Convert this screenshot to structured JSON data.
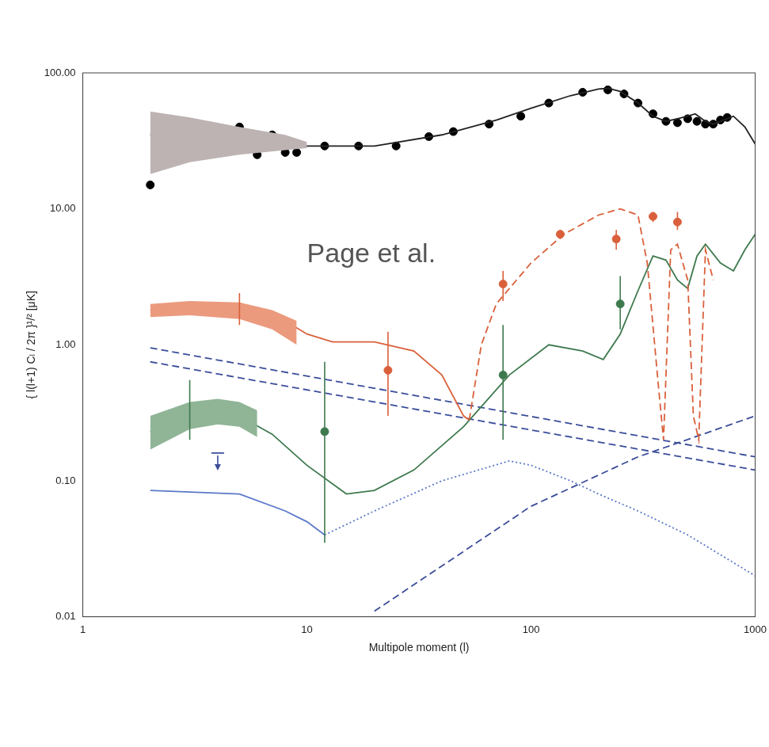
{
  "chart_data": {
    "type": "line",
    "log": true,
    "grid": false,
    "x_label": "Multipole moment (l)",
    "y_label": "{ l(l+1) Cₗ / 2π }¹/² [μK]",
    "xlim": [
      1,
      1000
    ],
    "xticks": [
      1,
      10,
      100,
      1000
    ],
    "ylim": [
      0.01,
      100
    ],
    "yticks": [
      {
        "value": 0.01,
        "label": "0.01"
      },
      {
        "value": 0.1,
        "label": "0.10"
      },
      {
        "value": 1,
        "label": "1.00"
      },
      {
        "value": 10,
        "label": "10.00"
      },
      {
        "value": 100,
        "label": "100.00"
      }
    ],
    "annotations": [
      {
        "text": "Page et al.",
        "x": 10,
        "y": 4.6
      }
    ],
    "series": [
      {
        "type": "band",
        "color": "#bdb3b3",
        "x": [
          2,
          3,
          5,
          8,
          10
        ],
        "lower": [
          18,
          22,
          25,
          27,
          28
        ],
        "upper": [
          52,
          47,
          40,
          35,
          31
        ]
      },
      {
        "type": "line",
        "color": "#222222",
        "line_style": "solid",
        "x": [
          2,
          3,
          5,
          10,
          20,
          40,
          70,
          100,
          150,
          200,
          220,
          250,
          300,
          350,
          400,
          450,
          500,
          540,
          600,
          650,
          700,
          800,
          900,
          1000
        ],
        "values": [
          35,
          34,
          32,
          29,
          29,
          35,
          45,
          55,
          68,
          76,
          77,
          73,
          60,
          48,
          44,
          46,
          48,
          50,
          44,
          42,
          44,
          48,
          40,
          30
        ]
      },
      {
        "type": "scatter",
        "color": "#000000",
        "marker": "circle",
        "x": [
          2,
          3,
          4,
          5,
          6,
          7,
          8,
          9,
          12,
          17,
          25,
          35,
          45,
          65,
          90,
          120,
          170,
          220,
          260,
          300,
          350,
          400,
          450,
          500,
          550,
          600,
          650,
          700,
          750
        ],
        "values": [
          15,
          33,
          27,
          40,
          25,
          35,
          26,
          26,
          29,
          29,
          29,
          34,
          37,
          42,
          48,
          60,
          72,
          75,
          70,
          60,
          50,
          44,
          43,
          46,
          44,
          42,
          42,
          45,
          47
        ]
      },
      {
        "type": "band",
        "color": "#eb9a7e",
        "x": [
          2,
          3,
          5,
          7,
          9
        ],
        "lower": [
          1.6,
          1.65,
          1.55,
          1.3,
          1.0
        ],
        "upper": [
          2.0,
          2.1,
          2.05,
          1.8,
          1.5
        ]
      },
      {
        "type": "line",
        "color": "#d9603b",
        "line_style": "solid",
        "x": [
          2,
          3,
          5,
          8,
          10,
          13,
          20,
          30,
          40,
          50,
          53
        ],
        "values": [
          1.8,
          1.85,
          1.8,
          1.5,
          1.2,
          1.05,
          1.05,
          0.9,
          0.6,
          0.3,
          0.28
        ]
      },
      {
        "type": "line",
        "color": "#d9603b",
        "line_style": "dashed",
        "x": [
          53,
          60,
          70,
          100,
          140,
          200,
          250,
          300,
          330,
          370,
          390,
          420,
          450,
          500,
          530,
          560,
          600,
          650
        ],
        "values": [
          0.28,
          1.0,
          2.0,
          4,
          6.5,
          9,
          10,
          9,
          4,
          0.5,
          0.2,
          5,
          5.5,
          3,
          0.3,
          0.2,
          5,
          3
        ]
      },
      {
        "type": "scatter",
        "color": "#d9603b",
        "marker": "circle",
        "x": [
          5,
          23,
          75,
          135,
          240,
          350,
          450
        ],
        "values": [
          1.9,
          0.65,
          2.8,
          6.5,
          6,
          8.8,
          8
        ],
        "error_low": [
          1.4,
          0.3,
          2.1,
          6.0,
          5,
          8,
          7
        ],
        "error_high": [
          2.4,
          1.25,
          3.5,
          7.0,
          7,
          9.5,
          9.5
        ]
      },
      {
        "type": "band",
        "color": "#8fb596",
        "x": [
          2,
          3,
          4,
          5,
          6
        ],
        "lower": [
          0.17,
          0.24,
          0.26,
          0.25,
          0.21
        ],
        "upper": [
          0.3,
          0.38,
          0.4,
          0.38,
          0.33
        ]
      },
      {
        "type": "line",
        "color": "#3f7a4f",
        "line_style": "solid",
        "x": [
          2,
          3,
          5,
          7,
          10,
          15,
          20,
          30,
          50,
          80,
          120,
          170,
          210,
          250,
          300,
          350,
          400,
          450,
          500,
          550,
          600,
          700,
          800,
          900,
          1000
        ],
        "values": [
          0.23,
          0.3,
          0.3,
          0.22,
          0.13,
          0.08,
          0.085,
          0.12,
          0.25,
          0.6,
          1.0,
          0.9,
          0.78,
          1.2,
          2.5,
          4.5,
          4.2,
          3.0,
          2.6,
          4.5,
          5.5,
          4,
          3.5,
          5,
          6.5
        ]
      },
      {
        "type": "scatter",
        "color": "#3f7a4f",
        "marker": "circle",
        "x": [
          3,
          12,
          75,
          250
        ],
        "values": [
          0.32,
          0.23,
          0.6,
          2.0
        ],
        "error_low": [
          0.2,
          0.035,
          0.2,
          1.3
        ],
        "error_high": [
          0.55,
          0.75,
          1.4,
          3.2
        ]
      },
      {
        "type": "line",
        "color": "#5b78c9",
        "line_style": "solid",
        "x": [
          2,
          5,
          8,
          10,
          12
        ],
        "values": [
          0.085,
          0.08,
          0.06,
          0.05,
          0.04
        ]
      },
      {
        "type": "line",
        "color": "#5b78c9",
        "line_style": "dotted",
        "x": [
          12,
          20,
          40,
          80,
          100,
          150,
          200,
          300,
          500,
          1000
        ],
        "values": [
          0.04,
          0.06,
          0.1,
          0.14,
          0.13,
          0.1,
          0.08,
          0.06,
          0.04,
          0.02
        ]
      },
      {
        "type": "scatter",
        "color": "#3b4d9a",
        "marker": "upper_limit",
        "x": [
          4
        ],
        "values": [
          0.16
        ]
      },
      {
        "type": "line",
        "color": "#3b4d9a",
        "line_style": "dashed",
        "x": [
          2,
          1000
        ],
        "values": [
          0.95,
          0.15
        ]
      },
      {
        "type": "line",
        "color": "#3b4d9a",
        "line_style": "dashed",
        "x": [
          2,
          1000
        ],
        "values": [
          0.75,
          0.12
        ]
      },
      {
        "type": "line",
        "color": "#3b4d9a",
        "line_style": "dashed",
        "x": [
          20,
          100,
          300,
          1000
        ],
        "values": [
          0.011,
          0.065,
          0.15,
          0.3
        ]
      }
    ]
  }
}
